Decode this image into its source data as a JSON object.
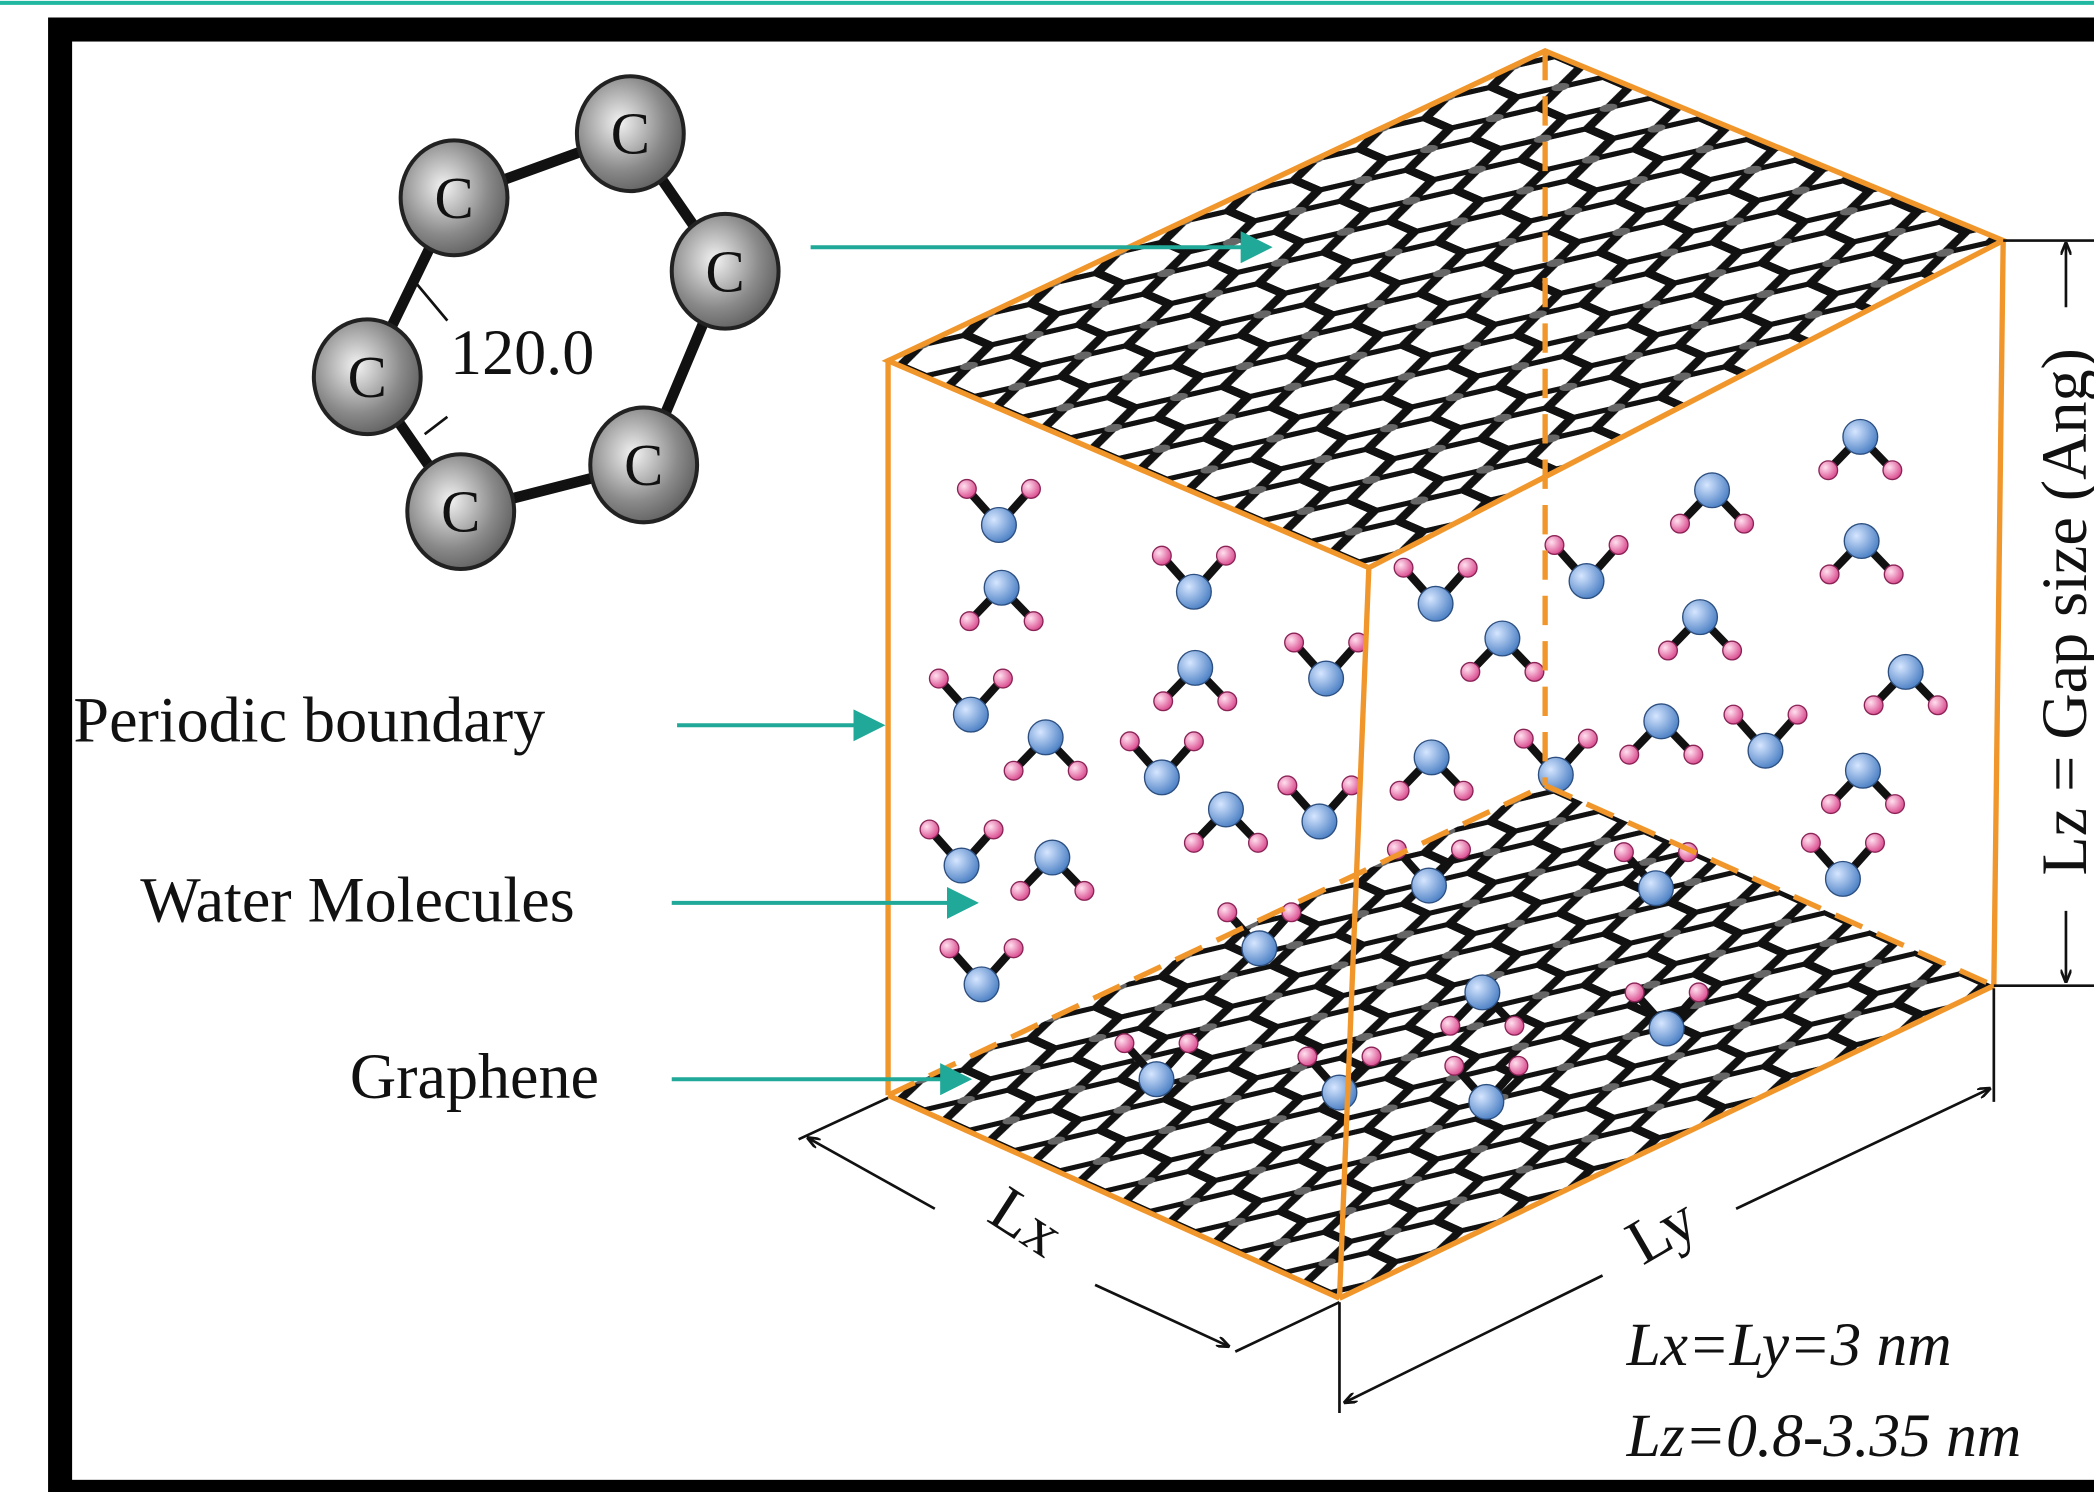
{
  "ring": {
    "atoms": [
      "C",
      "C",
      "C",
      "C",
      "C",
      "C"
    ],
    "angle": "120.0"
  },
  "labels": {
    "periodic_boundary": "Periodic boundary",
    "water_molecules": "Water Molecules",
    "graphene": "Graphene"
  },
  "dimensions": {
    "lx": "Lx",
    "ly": "Ly",
    "lz": "Lz = Gap size (Ang)"
  },
  "notes": [
    "Lx=Ly=3 nm",
    "Lz=0.8-3.35 nm"
  ]
}
